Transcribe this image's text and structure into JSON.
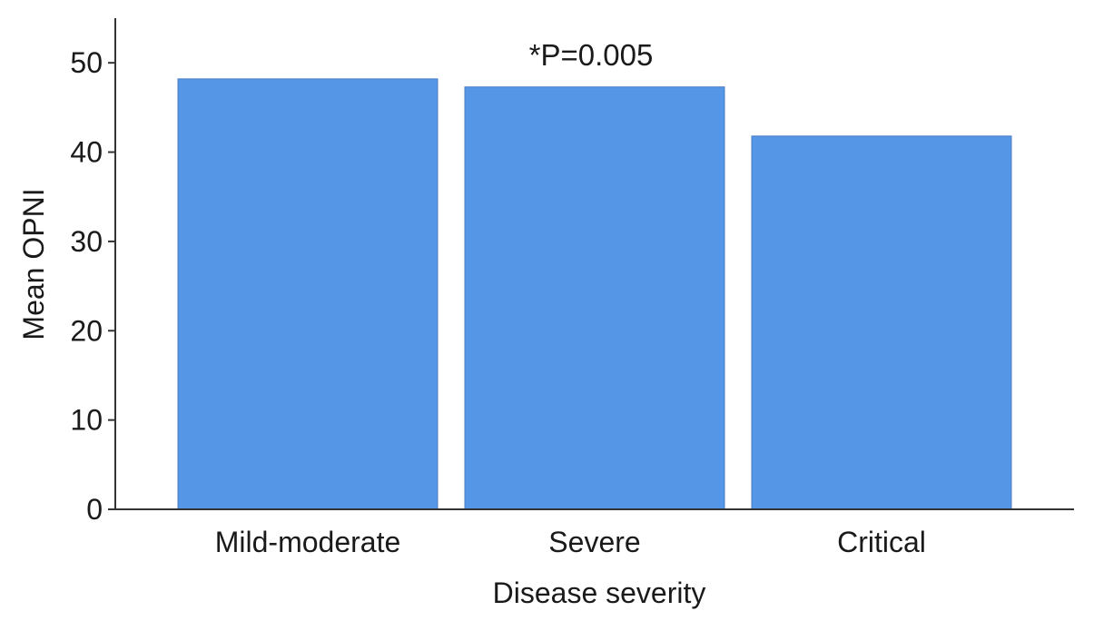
{
  "chart_data": {
    "type": "bar",
    "categories": [
      "Mild-moderate",
      "Severe",
      "Critical"
    ],
    "values": [
      48.2,
      47.3,
      41.8
    ],
    "title": "",
    "xlabel": "Disease severity",
    "ylabel": "Mean OPNI",
    "ylim": [
      0,
      55
    ],
    "yticks": [
      0,
      10,
      20,
      30,
      40,
      50
    ],
    "annotation": {
      "text": "*P=0.005",
      "category": "Severe"
    },
    "grid": false,
    "legend": "none",
    "colors": {
      "bar": "#5596e6",
      "axis": "#333333",
      "text": "#1a1a1a"
    }
  }
}
